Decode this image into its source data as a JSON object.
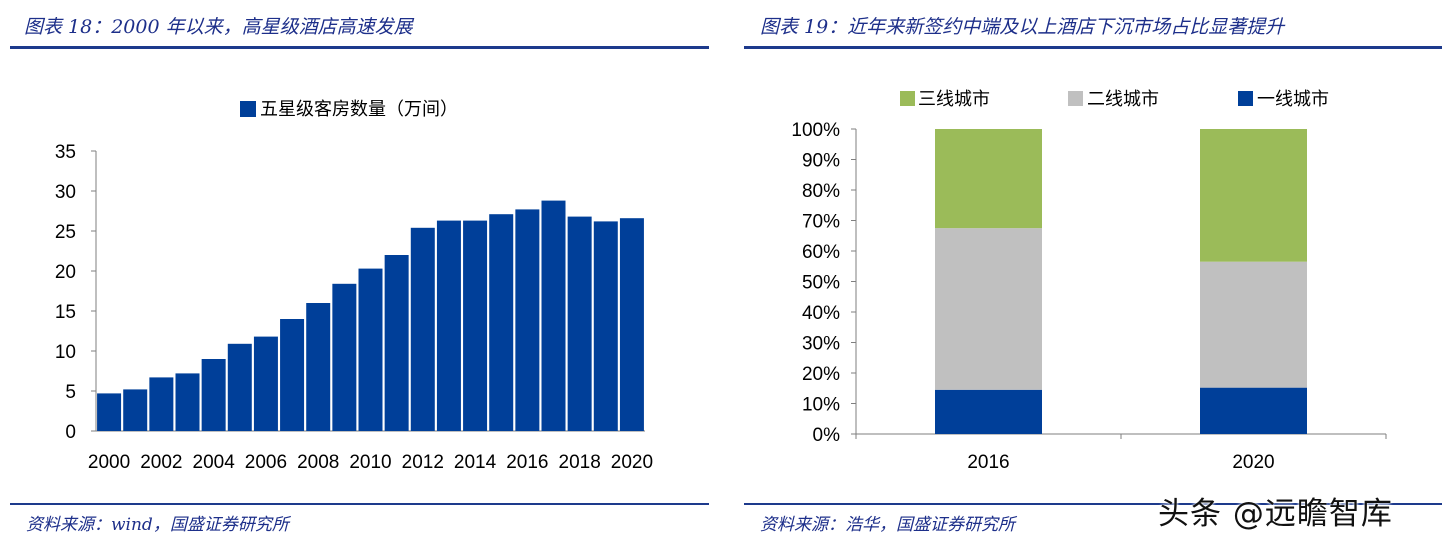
{
  "left_panel": {
    "title": "图表 18：2000 年以来，高星级酒店高速发展",
    "source": "资料来源：wind，国盛证券研究所"
  },
  "right_panel": {
    "title": "图表 19：近年来新签约中端及以上酒店下沉市场占比显著提升",
    "source": "资料来源：浩华，国盛证券研究所"
  },
  "watermark": "头条 @远瞻智库",
  "colors": {
    "bar_blue": "#003f99",
    "green": "#9bbb59",
    "gray": "#c0c0c0",
    "title_blue": "#1d2f8a"
  },
  "chart_data": [
    {
      "type": "bar",
      "title": "",
      "legend": [
        "五星级客房数量（万间）"
      ],
      "categories": [
        "2000",
        "2001",
        "2002",
        "2003",
        "2004",
        "2005",
        "2006",
        "2007",
        "2008",
        "2009",
        "2010",
        "2011",
        "2012",
        "2013",
        "2014",
        "2015",
        "2016",
        "2017",
        "2018",
        "2019",
        "2020"
      ],
      "tick_labels": [
        "2000",
        "2002",
        "2004",
        "2006",
        "2008",
        "2010",
        "2012",
        "2014",
        "2016",
        "2018",
        "2020"
      ],
      "values": [
        4.7,
        5.2,
        6.7,
        7.2,
        9.0,
        10.9,
        11.8,
        14.0,
        16.0,
        18.4,
        20.3,
        22.0,
        25.4,
        26.3,
        26.3,
        27.1,
        27.7,
        28.8,
        26.8,
        26.2,
        26.6
      ],
      "ylim": [
        0,
        35
      ],
      "yticks": [
        0,
        5,
        10,
        15,
        20,
        25,
        30,
        35
      ],
      "xlabel": "",
      "ylabel": ""
    },
    {
      "type": "bar",
      "stacked": true,
      "title": "",
      "categories": [
        "2016",
        "2020"
      ],
      "series": [
        {
          "name": "一线城市",
          "values": [
            14.5,
            15.2
          ]
        },
        {
          "name": "二线城市",
          "values": [
            53.0,
            41.3
          ]
        },
        {
          "name": "三线城市",
          "values": [
            32.5,
            43.5
          ]
        }
      ],
      "legend_order": [
        "三线城市",
        "二线城市",
        "一线城市"
      ],
      "ylim": [
        0,
        100
      ],
      "yticks": [
        "0%",
        "10%",
        "20%",
        "30%",
        "40%",
        "50%",
        "60%",
        "70%",
        "80%",
        "90%",
        "100%"
      ],
      "xlabel": "",
      "ylabel": ""
    }
  ]
}
